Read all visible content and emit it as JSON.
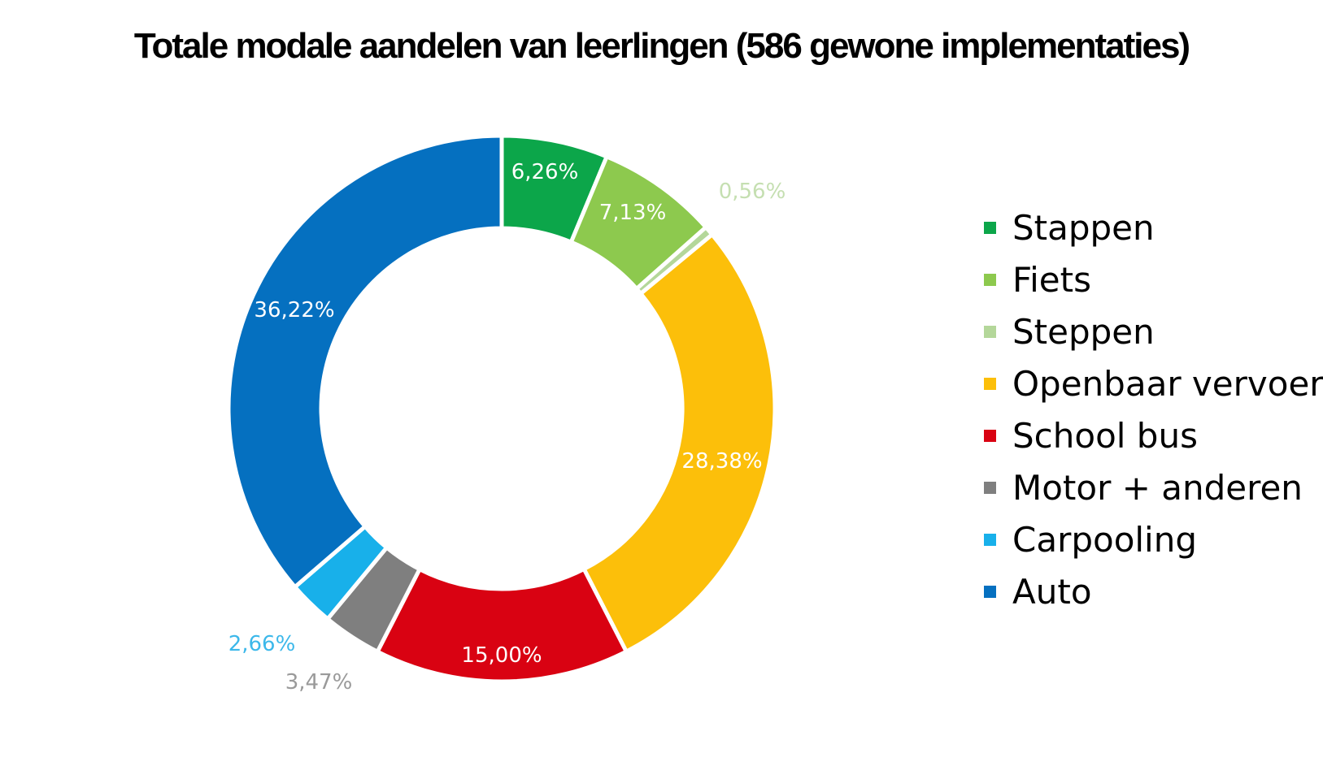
{
  "chart_data": {
    "type": "pie",
    "title": "Totale modale aandelen van leerlingen (586 gewone implementaties)",
    "series": [
      {
        "name": "Stappen",
        "value": 6.26,
        "label": "6,26%",
        "color": "#0ca64a",
        "label_color": "#ffffff"
      },
      {
        "name": "Fiets",
        "value": 7.13,
        "label": "7,13%",
        "color": "#8dc94e",
        "label_color": "#ffffff"
      },
      {
        "name": "Steppen",
        "value": 0.56,
        "label": "0,56%",
        "color": "#b4d79a",
        "label_color": "#c5dfb1"
      },
      {
        "name": "Openbaar vervoer",
        "value": 28.38,
        "label": "28,38%",
        "color": "#fcbf0a",
        "label_color": "#ffffff"
      },
      {
        "name": "School bus",
        "value": 15.0,
        "label": "15,00%",
        "color": "#d90212",
        "label_color": "#ffffff"
      },
      {
        "name": "Motor + anderen",
        "value": 3.47,
        "label": "3,47%",
        "color": "#7f7f7f",
        "label_color": "#9a9a9a"
      },
      {
        "name": "Carpooling",
        "value": 2.66,
        "label": "2,66%",
        "color": "#18b0ea",
        "label_color": "#3cb8ea"
      },
      {
        "name": "Auto",
        "value": 36.22,
        "label": "36,22%",
        "color": "#0570c0",
        "label_color": "#ffffff"
      }
    ],
    "legend_position": "right",
    "start_angle": "top",
    "direction": "clockwise"
  }
}
